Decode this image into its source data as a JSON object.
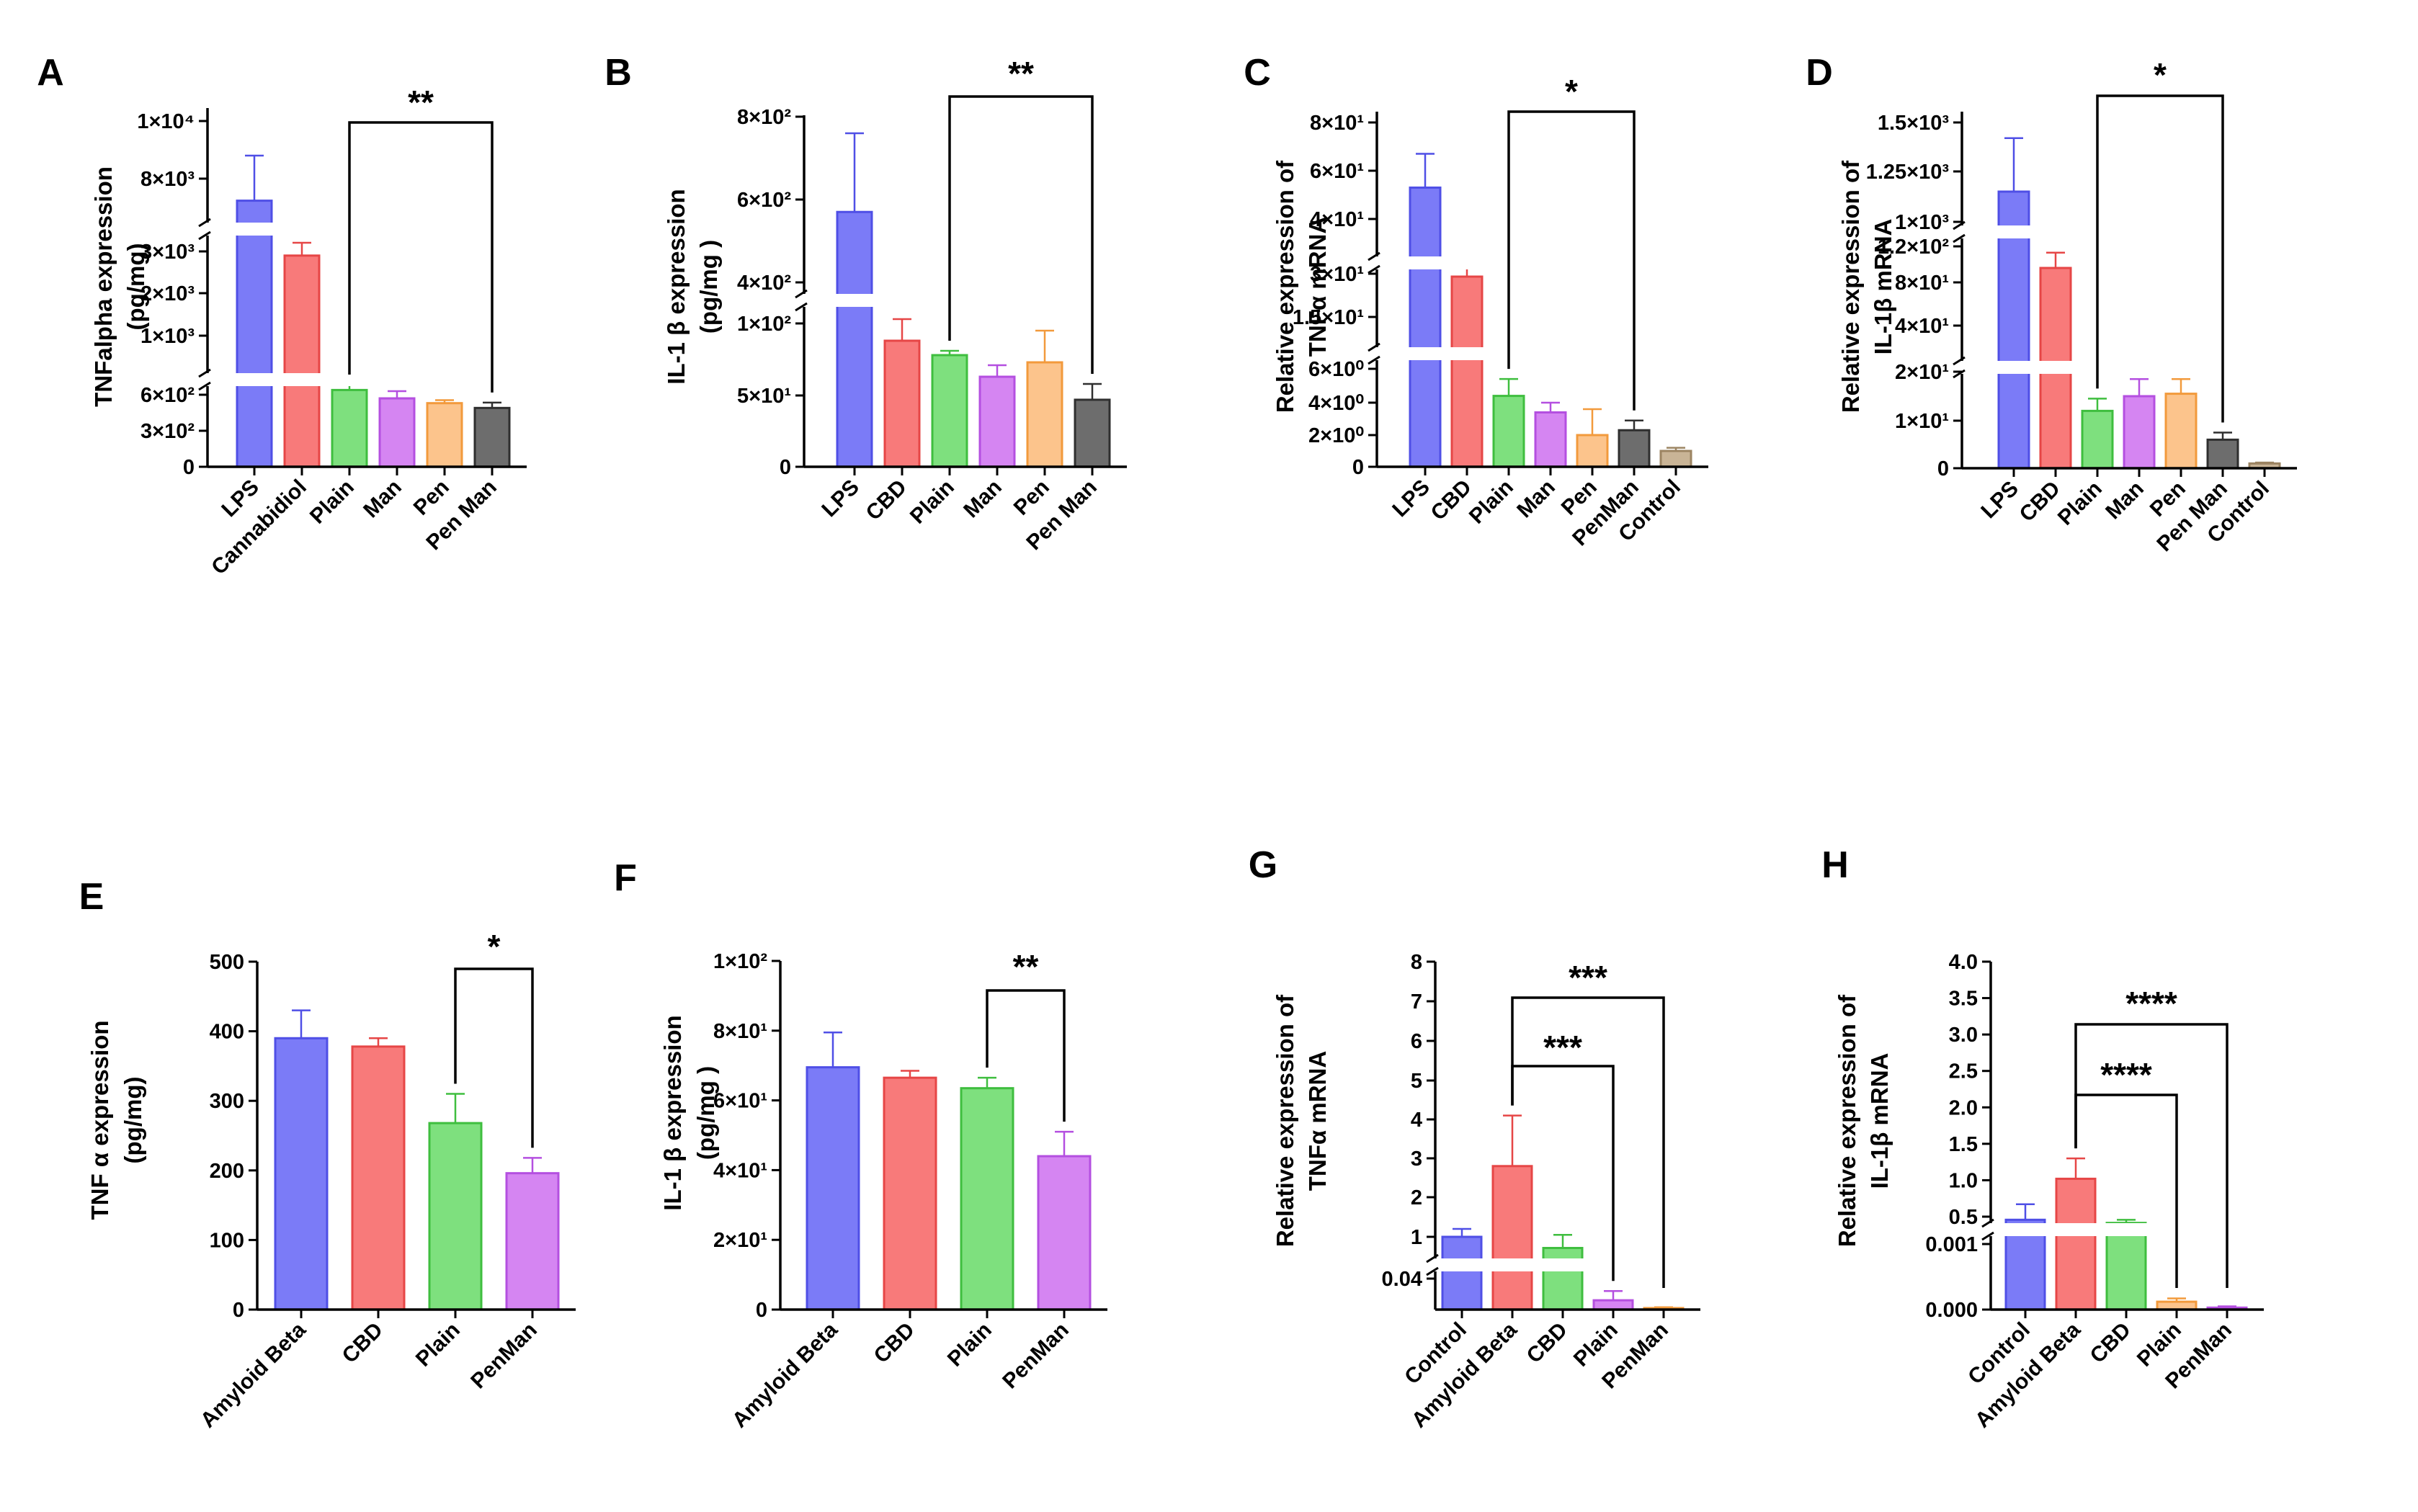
{
  "colors": {
    "blue": "#7b7bf7",
    "blue_edge": "#4f4fe6",
    "red": "#f87a7a",
    "red_edge": "#e64646",
    "green": "#7ee07e",
    "green_edge": "#3fbe3f",
    "violet": "#d585f2",
    "violet_edge": "#b44fe0",
    "orange": "#fcc48c",
    "orange_edge": "#f29a3c",
    "gray": "#6d6d6d",
    "gray_edge": "#2f2f2f",
    "tan": "#c9b496",
    "tan_edge": "#9c8462"
  },
  "chart_data": [
    {
      "id": "A",
      "type": "bar",
      "ylabel": [
        "TNFalpha expression",
        "(pg/mg)"
      ],
      "categories": [
        "LPS",
        "Cannabidiol",
        "Plain",
        "Man",
        "Pen",
        "Pen Man"
      ],
      "colors": [
        "blue",
        "red",
        "green",
        "violet",
        "orange",
        "gray"
      ],
      "values": [
        7100,
        2900,
        640,
        570,
        530,
        490
      ],
      "errors": [
        1700,
        200,
        45,
        60,
        25,
        45
      ],
      "axis_breaks": true,
      "y_ticks": [
        "1×10⁴",
        "8×10³",
        "3×10³",
        "2×10³",
        "1×10³",
        "6×10²",
        "3×10²",
        "0"
      ],
      "significance": [
        {
          "from": "Plain",
          "to": "Pen Man",
          "label": "**"
        }
      ]
    },
    {
      "id": "B",
      "type": "bar",
      "ylabel": [
        "IL-1 β expression",
        "(pg/mg )"
      ],
      "categories": [
        "LPS",
        "CBD",
        "Plain",
        "Man",
        "Pen",
        "Pen Man"
      ],
      "colors": [
        "blue",
        "red",
        "green",
        "violet",
        "orange",
        "gray"
      ],
      "values": [
        570,
        88,
        78,
        63,
        73,
        47
      ],
      "errors": [
        190,
        15,
        3,
        8,
        22,
        11
      ],
      "axis_breaks": true,
      "y_ticks": [
        "8×10²",
        "6×10²",
        "4×10²",
        "1×10²",
        "5×10¹",
        "0"
      ],
      "significance": [
        {
          "from": "Plain",
          "to": "Pen Man",
          "label": "**"
        }
      ]
    },
    {
      "id": "C",
      "type": "bar",
      "ylabel": [
        "Relative expression of",
        "TNFα mRNA"
      ],
      "categories": [
        "LPS",
        "CBD",
        "Plain",
        "Man",
        "Pen",
        "PenMan",
        "Control"
      ],
      "colors": [
        "blue",
        "red",
        "green",
        "violet",
        "orange",
        "gray",
        "tan"
      ],
      "values": [
        53,
        29,
        4.4,
        3.4,
        2.0,
        2.3,
        1.0
      ],
      "errors": [
        14,
        5,
        1.0,
        0.6,
        1.6,
        0.6,
        0.2
      ],
      "axis_breaks": true,
      "y_ticks": [
        "8×10¹",
        "6×10¹",
        "4×10¹",
        "3×10¹",
        "1.5×10¹",
        "6×10⁰",
        "4×10⁰",
        "2×10⁰",
        "0"
      ],
      "significance": [
        {
          "from": "Plain",
          "to": "PenMan",
          "label": "*"
        }
      ]
    },
    {
      "id": "D",
      "type": "bar",
      "ylabel": [
        "Relative expression of",
        "IL-1β mRNA"
      ],
      "categories": [
        "LPS",
        "CBD",
        "Plain",
        "Man",
        "Pen",
        "Pen Man",
        "Control"
      ],
      "colors": [
        "blue",
        "red",
        "green",
        "violet",
        "orange",
        "gray",
        "tan"
      ],
      "values": [
        1150,
        96,
        12,
        15,
        15.5,
        6,
        1
      ],
      "errors": [
        270,
        17,
        2.5,
        3.5,
        3,
        1.5,
        0.2
      ],
      "axis_breaks": true,
      "y_ticks": [
        "1.5×10³",
        "1.25×10³",
        "1×10³",
        "1.2×10²",
        "8×10¹",
        "4×10¹",
        "2×10¹",
        "1×10¹",
        "0"
      ],
      "significance": [
        {
          "from": "Plain",
          "to": "Pen Man",
          "label": "*"
        }
      ]
    },
    {
      "id": "E",
      "type": "bar",
      "ylabel": [
        "TNF α expression",
        "(pg/mg)"
      ],
      "categories": [
        "Amyloid Beta",
        "CBD",
        "Plain",
        "PenMan"
      ],
      "colors": [
        "blue",
        "red",
        "green",
        "violet"
      ],
      "values": [
        390,
        378,
        268,
        196
      ],
      "errors": [
        40,
        12,
        42,
        22
      ],
      "ylim": [
        0,
        500
      ],
      "y_ticks": [
        "500",
        "400",
        "300",
        "200",
        "100",
        "0"
      ],
      "significance": [
        {
          "from": "Plain",
          "to": "PenMan",
          "label": "*"
        }
      ]
    },
    {
      "id": "F",
      "type": "bar",
      "ylabel": [
        "IL-1 β expression",
        "(pg/mg )"
      ],
      "categories": [
        "Amyloid Beta",
        "CBD",
        "Plain",
        "PenMan"
      ],
      "colors": [
        "blue",
        "red",
        "green",
        "violet"
      ],
      "values": [
        69.5,
        66.5,
        63.5,
        44
      ],
      "errors": [
        10,
        2,
        3,
        7
      ],
      "ylim": [
        0,
        100
      ],
      "y_ticks": [
        "1×10²",
        "8×10¹",
        "6×10¹",
        "4×10¹",
        "2×10¹",
        "0"
      ],
      "significance": [
        {
          "from": "Plain",
          "to": "PenMan",
          "label": "**"
        }
      ]
    },
    {
      "id": "G",
      "type": "bar",
      "ylabel": [
        "Relative expression of",
        "TNFα mRNA"
      ],
      "categories": [
        "Control",
        "Amyloid Beta",
        "CBD",
        "Plain",
        "PenMan"
      ],
      "colors": [
        "blue",
        "red",
        "green",
        "violet",
        "orange"
      ],
      "values": [
        1.0,
        2.8,
        0.75,
        0.012,
        0.002
      ],
      "errors": [
        0.2,
        1.3,
        0.3,
        0.012,
        0.001
      ],
      "axis_breaks": true,
      "y_ticks": [
        "8",
        "7",
        "6",
        "5",
        "4",
        "3",
        "2",
        "1",
        "0.04"
      ],
      "significance": [
        {
          "from": "Amyloid Beta",
          "to": "Plain",
          "label": "***"
        },
        {
          "from": "Amyloid Beta",
          "to": "PenMan",
          "label": "***"
        }
      ]
    },
    {
      "id": "H",
      "type": "bar",
      "ylabel": [
        "Relative expression of",
        "IL-1β mRNA"
      ],
      "categories": [
        "Control",
        "Amyloid Beta",
        "CBD",
        "Plain",
        "PenMan"
      ],
      "colors": [
        "blue",
        "red",
        "green",
        "orange",
        "violet"
      ],
      "values": [
        0.4,
        1.02,
        0.3,
        0.00012,
        3e-05
      ],
      "errors": [
        0.27,
        0.28,
        0.1,
        5e-05,
        2e-05
      ],
      "axis_breaks": true,
      "y_ticks": [
        "4.0",
        "3.5",
        "3.0",
        "2.5",
        "2.0",
        "1.5",
        "1.0",
        "0.5",
        "0.001",
        "0.000"
      ],
      "significance": [
        {
          "from": "Amyloid Beta",
          "to": "Plain",
          "label": "****"
        },
        {
          "from": "Amyloid Beta",
          "to": "PenMan",
          "label": "****"
        }
      ]
    }
  ]
}
